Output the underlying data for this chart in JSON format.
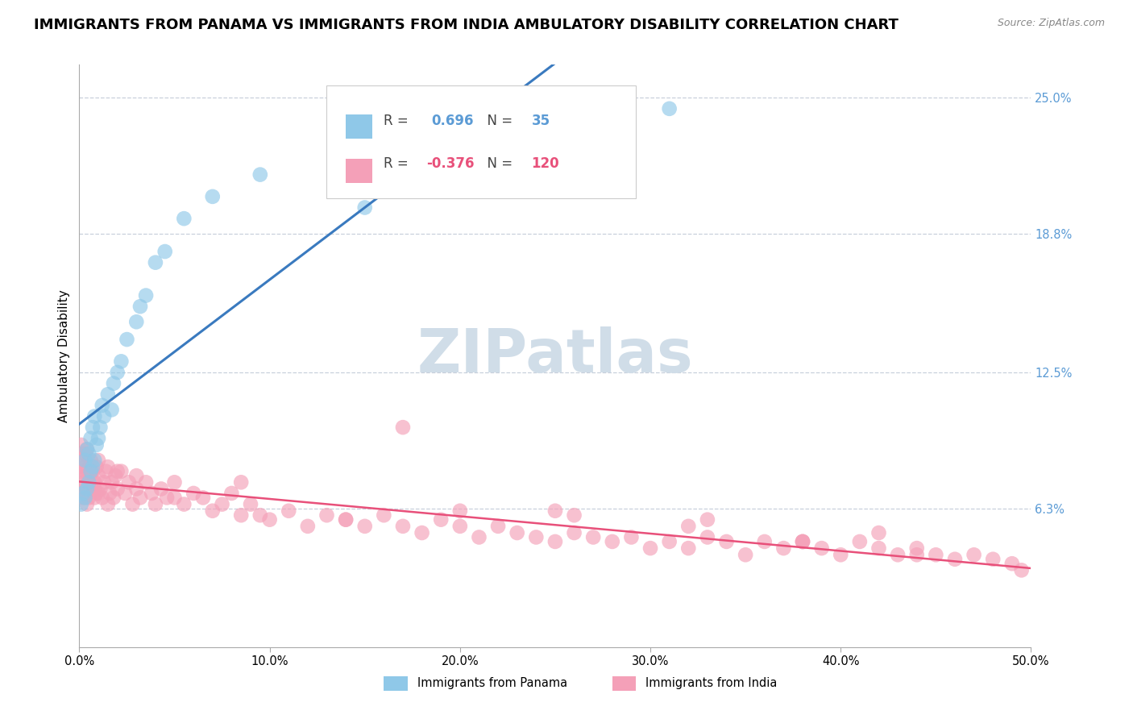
{
  "title": "IMMIGRANTS FROM PANAMA VS IMMIGRANTS FROM INDIA AMBULATORY DISABILITY CORRELATION CHART",
  "source_text": "Source: ZipAtlas.com",
  "ylabel": "Ambulatory Disability",
  "xlim": [
    0.0,
    0.5
  ],
  "ylim": [
    0.0,
    0.265
  ],
  "xtick_labels": [
    "0.0%",
    "10.0%",
    "20.0%",
    "30.0%",
    "40.0%",
    "50.0%"
  ],
  "xtick_vals": [
    0.0,
    0.1,
    0.2,
    0.3,
    0.4,
    0.5
  ],
  "ytick_labels": [
    "6.3%",
    "12.5%",
    "18.8%",
    "25.0%"
  ],
  "ytick_vals": [
    0.063,
    0.125,
    0.188,
    0.25
  ],
  "r_panama": 0.696,
  "n_panama": 35,
  "r_india": -0.376,
  "n_india": 120,
  "color_panama": "#8fc8e8",
  "color_india": "#f4a0b8",
  "line_color_panama": "#3a7abf",
  "line_color_india": "#e8507a",
  "title_fontsize": 13,
  "label_fontsize": 11,
  "tick_fontsize": 10.5,
  "watermark_text": "ZIPatlas",
  "watermark_color": "#d0dde8",
  "legend_label_panama": "Immigrants from Panama",
  "legend_label_india": "Immigrants from India",
  "grid_color": "#c8d0dc",
  "panama_x": [
    0.001,
    0.002,
    0.003,
    0.003,
    0.004,
    0.004,
    0.005,
    0.005,
    0.006,
    0.006,
    0.007,
    0.007,
    0.008,
    0.008,
    0.009,
    0.01,
    0.011,
    0.012,
    0.013,
    0.015,
    0.017,
    0.018,
    0.02,
    0.022,
    0.025,
    0.03,
    0.032,
    0.035,
    0.04,
    0.045,
    0.055,
    0.07,
    0.095,
    0.15,
    0.31
  ],
  "panama_y": [
    0.065,
    0.07,
    0.068,
    0.085,
    0.072,
    0.09,
    0.075,
    0.088,
    0.08,
    0.095,
    0.082,
    0.1,
    0.085,
    0.105,
    0.092,
    0.095,
    0.1,
    0.11,
    0.105,
    0.115,
    0.108,
    0.12,
    0.125,
    0.13,
    0.14,
    0.148,
    0.155,
    0.16,
    0.175,
    0.18,
    0.195,
    0.205,
    0.215,
    0.2,
    0.245
  ],
  "india_x": [
    0.001,
    0.001,
    0.001,
    0.002,
    0.002,
    0.002,
    0.003,
    0.003,
    0.003,
    0.004,
    0.004,
    0.004,
    0.005,
    0.005,
    0.005,
    0.006,
    0.006,
    0.007,
    0.007,
    0.008,
    0.008,
    0.009,
    0.009,
    0.01,
    0.01,
    0.011,
    0.012,
    0.013,
    0.014,
    0.015,
    0.016,
    0.017,
    0.018,
    0.019,
    0.02,
    0.022,
    0.024,
    0.026,
    0.028,
    0.03,
    0.032,
    0.035,
    0.038,
    0.04,
    0.043,
    0.046,
    0.05,
    0.055,
    0.06,
    0.065,
    0.07,
    0.075,
    0.08,
    0.085,
    0.09,
    0.095,
    0.1,
    0.11,
    0.12,
    0.13,
    0.14,
    0.15,
    0.16,
    0.17,
    0.18,
    0.19,
    0.2,
    0.21,
    0.22,
    0.23,
    0.24,
    0.25,
    0.26,
    0.27,
    0.28,
    0.29,
    0.3,
    0.31,
    0.32,
    0.33,
    0.34,
    0.35,
    0.36,
    0.37,
    0.38,
    0.39,
    0.4,
    0.41,
    0.42,
    0.43,
    0.44,
    0.45,
    0.46,
    0.47,
    0.48,
    0.49,
    0.495,
    0.44,
    0.38,
    0.32,
    0.26,
    0.2,
    0.14,
    0.085,
    0.05,
    0.03,
    0.02,
    0.015,
    0.01,
    0.008,
    0.006,
    0.004,
    0.003,
    0.002,
    0.001,
    0.17,
    0.25,
    0.33,
    0.42,
    0.38
  ],
  "india_y": [
    0.072,
    0.078,
    0.085,
    0.068,
    0.075,
    0.082,
    0.07,
    0.08,
    0.088,
    0.065,
    0.072,
    0.09,
    0.075,
    0.082,
    0.068,
    0.078,
    0.085,
    0.072,
    0.08,
    0.068,
    0.075,
    0.082,
    0.07,
    0.078,
    0.085,
    0.072,
    0.068,
    0.075,
    0.08,
    0.082,
    0.07,
    0.075,
    0.068,
    0.078,
    0.072,
    0.08,
    0.07,
    0.075,
    0.065,
    0.072,
    0.068,
    0.075,
    0.07,
    0.065,
    0.072,
    0.068,
    0.075,
    0.065,
    0.07,
    0.068,
    0.062,
    0.065,
    0.07,
    0.06,
    0.065,
    0.06,
    0.058,
    0.062,
    0.055,
    0.06,
    0.058,
    0.055,
    0.06,
    0.055,
    0.052,
    0.058,
    0.055,
    0.05,
    0.055,
    0.052,
    0.05,
    0.048,
    0.052,
    0.05,
    0.048,
    0.05,
    0.045,
    0.048,
    0.045,
    0.05,
    0.048,
    0.042,
    0.048,
    0.045,
    0.048,
    0.045,
    0.042,
    0.048,
    0.045,
    0.042,
    0.045,
    0.042,
    0.04,
    0.042,
    0.04,
    0.038,
    0.035,
    0.042,
    0.048,
    0.055,
    0.06,
    0.062,
    0.058,
    0.075,
    0.068,
    0.078,
    0.08,
    0.065,
    0.07,
    0.072,
    0.08,
    0.078,
    0.082,
    0.088,
    0.092,
    0.1,
    0.062,
    0.058,
    0.052,
    0.048
  ]
}
